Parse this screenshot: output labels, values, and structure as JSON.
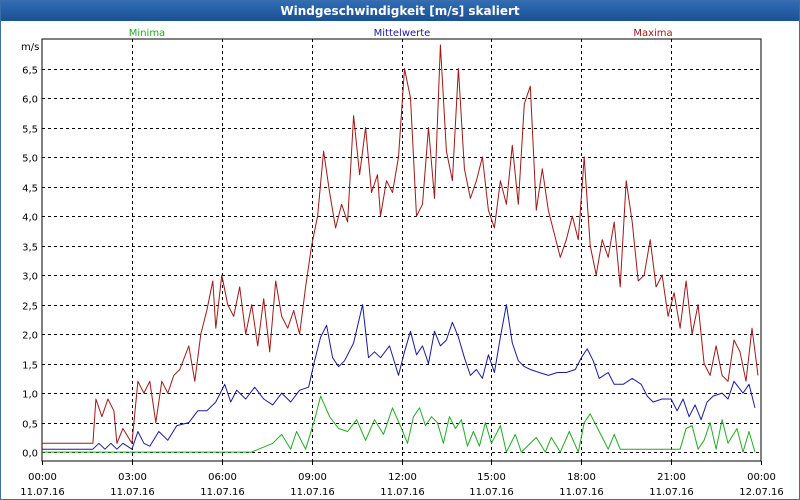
{
  "window": {
    "title": "Windgeschwindigkeit [m/s] skaliert"
  },
  "chart_data": {
    "type": "line",
    "ylabel": "m/s",
    "ylim": [
      -0.15,
      7.0
    ],
    "yticks": [
      0.0,
      0.5,
      1.0,
      1.5,
      2.0,
      2.5,
      3.0,
      3.5,
      4.0,
      4.5,
      5.0,
      5.5,
      6.0,
      6.5
    ],
    "ytick_labels": [
      "0,0",
      "0,5",
      "1,0",
      "1,5",
      "2,0",
      "2,5",
      "3,0",
      "3,5",
      "4,0",
      "4,5",
      "5,0",
      "5,5",
      "6,0",
      "6,5"
    ],
    "xlim": [
      0,
      24
    ],
    "xticks": [
      {
        "hour": 0,
        "time": "00:00",
        "date": "11.07.16"
      },
      {
        "hour": 3,
        "time": "03:00",
        "date": "11.07.16"
      },
      {
        "hour": 6,
        "time": "06:00",
        "date": "11.07.16"
      },
      {
        "hour": 9,
        "time": "09:00",
        "date": "11.07.16"
      },
      {
        "hour": 12,
        "time": "12:00",
        "date": "11.07.16"
      },
      {
        "hour": 15,
        "time": "15:00",
        "date": "11.07.16"
      },
      {
        "hour": 18,
        "time": "18:00",
        "date": "11.07.16"
      },
      {
        "hour": 21,
        "time": "21:00",
        "date": "11.07.16"
      },
      {
        "hour": 24,
        "time": "00:00",
        "date": "12.07.16"
      }
    ],
    "grid": true,
    "legend_position": "top",
    "series": [
      {
        "name": "Minima",
        "color": "#22aa22",
        "legend_position": "left",
        "points": [
          [
            0,
            0
          ],
          [
            1.8,
            0
          ],
          [
            3,
            0
          ],
          [
            5,
            0
          ],
          [
            7,
            0
          ],
          [
            7.7,
            0.15
          ],
          [
            8,
            0.3
          ],
          [
            8.3,
            0.05
          ],
          [
            8.5,
            0.35
          ],
          [
            8.8,
            0.05
          ],
          [
            9.1,
            0.55
          ],
          [
            9.3,
            0.95
          ],
          [
            9.6,
            0.6
          ],
          [
            9.9,
            0.4
          ],
          [
            10.2,
            0.35
          ],
          [
            10.5,
            0.55
          ],
          [
            10.8,
            0.2
          ],
          [
            11.1,
            0.55
          ],
          [
            11.4,
            0.3
          ],
          [
            11.7,
            0.75
          ],
          [
            12.0,
            0.4
          ],
          [
            12.2,
            0.15
          ],
          [
            12.4,
            0.6
          ],
          [
            12.6,
            0.75
          ],
          [
            12.8,
            0.45
          ],
          [
            13.0,
            0.6
          ],
          [
            13.2,
            0.5
          ],
          [
            13.4,
            0.15
          ],
          [
            13.6,
            0.6
          ],
          [
            13.8,
            0.4
          ],
          [
            14.0,
            0.55
          ],
          [
            14.2,
            0.1
          ],
          [
            14.4,
            0.35
          ],
          [
            14.6,
            0.1
          ],
          [
            14.8,
            0.5
          ],
          [
            15.0,
            0.15
          ],
          [
            15.3,
            0.45
          ],
          [
            15.5,
            0.0
          ],
          [
            15.8,
            0.3
          ],
          [
            16.0,
            0.0
          ],
          [
            16.5,
            0.25
          ],
          [
            16.8,
            0.0
          ],
          [
            17.0,
            0.25
          ],
          [
            17.3,
            0.0
          ],
          [
            17.6,
            0.35
          ],
          [
            17.9,
            0.0
          ],
          [
            18.1,
            0.5
          ],
          [
            18.3,
            0.65
          ],
          [
            18.6,
            0.35
          ],
          [
            18.9,
            0.05
          ],
          [
            19.1,
            0.3
          ],
          [
            19.3,
            0.05
          ],
          [
            21.3,
            0.05
          ],
          [
            21.5,
            0.4
          ],
          [
            21.7,
            0.45
          ],
          [
            21.9,
            0.05
          ],
          [
            22.1,
            0.2
          ],
          [
            22.3,
            0.5
          ],
          [
            22.5,
            0.05
          ],
          [
            22.7,
            0.55
          ],
          [
            22.9,
            0.15
          ],
          [
            23.2,
            0.4
          ],
          [
            23.4,
            0.0
          ],
          [
            23.6,
            0.35
          ],
          [
            23.8,
            0.0
          ]
        ]
      },
      {
        "name": "Mittelwerte",
        "color": "#1a1aa0",
        "legend_position": "center",
        "points": [
          [
            0,
            0.05
          ],
          [
            1.7,
            0.05
          ],
          [
            1.9,
            0.15
          ],
          [
            2.1,
            0.05
          ],
          [
            2.3,
            0.15
          ],
          [
            2.5,
            0.05
          ],
          [
            2.7,
            0.15
          ],
          [
            3.0,
            0.05
          ],
          [
            3.2,
            0.35
          ],
          [
            3.4,
            0.15
          ],
          [
            3.6,
            0.1
          ],
          [
            3.9,
            0.35
          ],
          [
            4.2,
            0.2
          ],
          [
            4.5,
            0.45
          ],
          [
            4.9,
            0.5
          ],
          [
            5.2,
            0.7
          ],
          [
            5.5,
            0.7
          ],
          [
            5.8,
            0.85
          ],
          [
            6.1,
            1.15
          ],
          [
            6.3,
            0.85
          ],
          [
            6.5,
            1.05
          ],
          [
            6.8,
            0.9
          ],
          [
            7.1,
            1.1
          ],
          [
            7.4,
            0.9
          ],
          [
            7.7,
            0.8
          ],
          [
            8.0,
            1.0
          ],
          [
            8.3,
            0.85
          ],
          [
            8.6,
            1.05
          ],
          [
            8.9,
            1.1
          ],
          [
            9.1,
            1.55
          ],
          [
            9.3,
            1.95
          ],
          [
            9.5,
            2.15
          ],
          [
            9.7,
            1.6
          ],
          [
            9.9,
            1.45
          ],
          [
            10.1,
            1.55
          ],
          [
            10.4,
            1.85
          ],
          [
            10.7,
            2.5
          ],
          [
            10.9,
            1.6
          ],
          [
            11.1,
            1.7
          ],
          [
            11.3,
            1.6
          ],
          [
            11.6,
            1.8
          ],
          [
            11.9,
            1.3
          ],
          [
            12.1,
            1.7
          ],
          [
            12.3,
            2.05
          ],
          [
            12.5,
            1.65
          ],
          [
            12.7,
            1.8
          ],
          [
            12.9,
            1.5
          ],
          [
            13.1,
            2.05
          ],
          [
            13.3,
            1.8
          ],
          [
            13.5,
            1.9
          ],
          [
            13.7,
            2.2
          ],
          [
            13.9,
            1.95
          ],
          [
            14.1,
            1.6
          ],
          [
            14.3,
            1.3
          ],
          [
            14.5,
            1.4
          ],
          [
            14.7,
            1.25
          ],
          [
            14.9,
            1.65
          ],
          [
            15.1,
            1.35
          ],
          [
            15.3,
            1.95
          ],
          [
            15.5,
            2.5
          ],
          [
            15.7,
            1.85
          ],
          [
            15.9,
            1.55
          ],
          [
            16.1,
            1.45
          ],
          [
            16.3,
            1.4
          ],
          [
            16.6,
            1.35
          ],
          [
            16.9,
            1.3
          ],
          [
            17.2,
            1.35
          ],
          [
            17.5,
            1.35
          ],
          [
            17.8,
            1.4
          ],
          [
            18.0,
            1.6
          ],
          [
            18.2,
            1.75
          ],
          [
            18.4,
            1.55
          ],
          [
            18.6,
            1.25
          ],
          [
            18.9,
            1.35
          ],
          [
            19.1,
            1.15
          ],
          [
            19.4,
            1.15
          ],
          [
            19.7,
            1.25
          ],
          [
            20.0,
            1.15
          ],
          [
            20.2,
            0.95
          ],
          [
            20.4,
            0.85
          ],
          [
            20.7,
            0.9
          ],
          [
            21.0,
            0.9
          ],
          [
            21.2,
            0.7
          ],
          [
            21.4,
            0.9
          ],
          [
            21.6,
            0.6
          ],
          [
            21.8,
            0.8
          ],
          [
            22.0,
            0.55
          ],
          [
            22.2,
            0.85
          ],
          [
            22.4,
            0.95
          ],
          [
            22.7,
            1.0
          ],
          [
            22.9,
            0.9
          ],
          [
            23.1,
            1.2
          ],
          [
            23.4,
            1.0
          ],
          [
            23.6,
            1.15
          ],
          [
            23.8,
            0.75
          ]
        ]
      },
      {
        "name": "Maxima",
        "color": "#a01818",
        "legend_position": "right",
        "points": [
          [
            0,
            0.15
          ],
          [
            1.7,
            0.15
          ],
          [
            1.8,
            0.9
          ],
          [
            2.0,
            0.6
          ],
          [
            2.2,
            0.9
          ],
          [
            2.4,
            0.7
          ],
          [
            2.5,
            0.15
          ],
          [
            2.7,
            0.4
          ],
          [
            3.0,
            0.15
          ],
          [
            3.2,
            1.2
          ],
          [
            3.4,
            1.0
          ],
          [
            3.6,
            1.2
          ],
          [
            3.8,
            0.5
          ],
          [
            4.0,
            1.2
          ],
          [
            4.2,
            1.0
          ],
          [
            4.4,
            1.3
          ],
          [
            4.6,
            1.4
          ],
          [
            4.9,
            1.8
          ],
          [
            5.1,
            1.2
          ],
          [
            5.3,
            2.0
          ],
          [
            5.5,
            2.4
          ],
          [
            5.7,
            2.9
          ],
          [
            5.8,
            2.1
          ],
          [
            6.0,
            3.0
          ],
          [
            6.2,
            2.5
          ],
          [
            6.4,
            2.3
          ],
          [
            6.6,
            2.8
          ],
          [
            6.8,
            2.0
          ],
          [
            7.0,
            2.5
          ],
          [
            7.2,
            1.8
          ],
          [
            7.4,
            2.6
          ],
          [
            7.6,
            1.7
          ],
          [
            7.8,
            2.9
          ],
          [
            8.0,
            2.3
          ],
          [
            8.2,
            2.1
          ],
          [
            8.4,
            2.4
          ],
          [
            8.6,
            2.0
          ],
          [
            8.8,
            2.8
          ],
          [
            9.0,
            3.5
          ],
          [
            9.2,
            4.0
          ],
          [
            9.4,
            5.1
          ],
          [
            9.6,
            4.4
          ],
          [
            9.8,
            3.8
          ],
          [
            10.0,
            4.2
          ],
          [
            10.2,
            3.9
          ],
          [
            10.4,
            5.7
          ],
          [
            10.6,
            4.7
          ],
          [
            10.8,
            5.5
          ],
          [
            11.0,
            4.4
          ],
          [
            11.2,
            4.7
          ],
          [
            11.3,
            4.0
          ],
          [
            11.5,
            4.6
          ],
          [
            11.7,
            4.4
          ],
          [
            11.9,
            5.0
          ],
          [
            12.1,
            6.5
          ],
          [
            12.3,
            6.0
          ],
          [
            12.5,
            4.0
          ],
          [
            12.7,
            4.2
          ],
          [
            12.9,
            5.5
          ],
          [
            13.1,
            4.3
          ],
          [
            13.3,
            6.9
          ],
          [
            13.5,
            5.1
          ],
          [
            13.7,
            4.6
          ],
          [
            13.9,
            6.5
          ],
          [
            14.1,
            4.8
          ],
          [
            14.3,
            4.3
          ],
          [
            14.5,
            4.6
          ],
          [
            14.7,
            5.0
          ],
          [
            14.9,
            4.1
          ],
          [
            15.1,
            3.8
          ],
          [
            15.3,
            4.6
          ],
          [
            15.5,
            4.2
          ],
          [
            15.7,
            5.2
          ],
          [
            15.9,
            4.2
          ],
          [
            16.1,
            5.9
          ],
          [
            16.3,
            6.2
          ],
          [
            16.5,
            4.1
          ],
          [
            16.7,
            4.8
          ],
          [
            16.9,
            4.1
          ],
          [
            17.1,
            3.7
          ],
          [
            17.3,
            3.3
          ],
          [
            17.5,
            3.6
          ],
          [
            17.7,
            4.0
          ],
          [
            17.9,
            3.6
          ],
          [
            18.1,
            5.0
          ],
          [
            18.3,
            3.5
          ],
          [
            18.5,
            3.0
          ],
          [
            18.7,
            3.6
          ],
          [
            18.9,
            3.3
          ],
          [
            19.1,
            3.9
          ],
          [
            19.3,
            2.8
          ],
          [
            19.5,
            4.6
          ],
          [
            19.7,
            3.9
          ],
          [
            19.9,
            2.9
          ],
          [
            20.1,
            3.0
          ],
          [
            20.3,
            3.6
          ],
          [
            20.5,
            2.8
          ],
          [
            20.7,
            3.0
          ],
          [
            20.9,
            2.3
          ],
          [
            21.1,
            2.7
          ],
          [
            21.3,
            2.1
          ],
          [
            21.5,
            2.9
          ],
          [
            21.7,
            2.0
          ],
          [
            21.9,
            2.5
          ],
          [
            22.1,
            1.5
          ],
          [
            22.3,
            1.3
          ],
          [
            22.5,
            1.8
          ],
          [
            22.7,
            1.3
          ],
          [
            22.9,
            1.2
          ],
          [
            23.1,
            1.9
          ],
          [
            23.3,
            1.7
          ],
          [
            23.5,
            1.2
          ],
          [
            23.7,
            2.1
          ],
          [
            23.9,
            1.3
          ]
        ]
      }
    ]
  }
}
